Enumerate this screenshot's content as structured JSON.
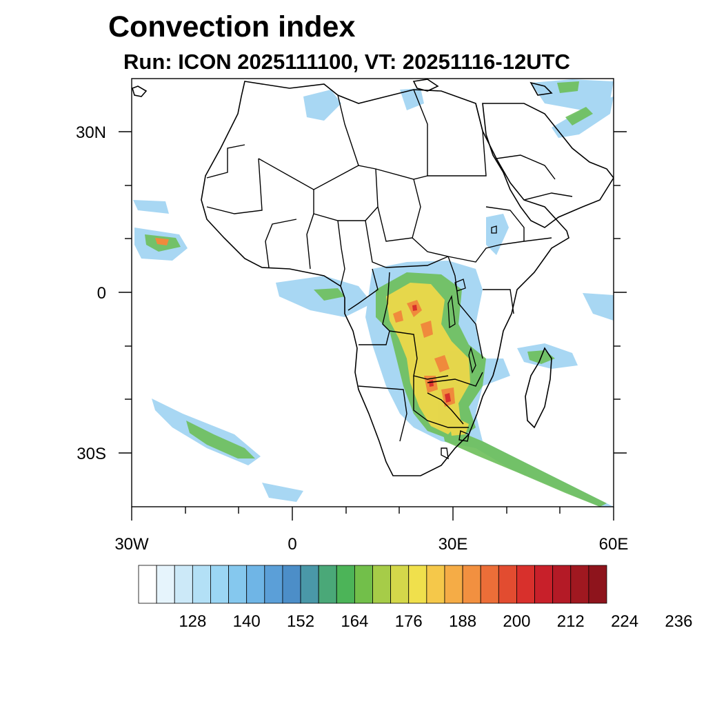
{
  "title": "Convection index",
  "subtitle": "Run: ICON 2025111100,  VT: 20251116-12UTC",
  "map": {
    "projection": "cylindrical equidistant",
    "lon_range": [
      -30,
      60
    ],
    "lat_range": [
      -40,
      40
    ],
    "lat_ticks": [
      {
        "value": 30,
        "label": "30N"
      },
      {
        "value": 0,
        "label": "0"
      },
      {
        "value": -30,
        "label": "30S"
      }
    ],
    "lon_ticks": [
      {
        "value": -30,
        "label": "30W"
      },
      {
        "value": 0,
        "label": "0"
      },
      {
        "value": 30,
        "label": "30E"
      },
      {
        "value": 60,
        "label": "60E"
      }
    ]
  },
  "colorbar": {
    "colors": [
      "#ffffff",
      "#e6f4fc",
      "#cce9f8",
      "#b3e0f6",
      "#9bd6f4",
      "#85c8ee",
      "#6fb5e6",
      "#5b9fd8",
      "#4c8ec8",
      "#4a98a8",
      "#4aa878",
      "#4cb458",
      "#72bf4a",
      "#a6cc48",
      "#d4d84a",
      "#f0e04c",
      "#f5c84a",
      "#f5ac46",
      "#f29040",
      "#ec6e38",
      "#e24c30",
      "#d8302c",
      "#c8202a",
      "#b41a26",
      "#a01820",
      "#8e141c"
    ],
    "tick_labels": [
      "128",
      "140",
      "152",
      "164",
      "176",
      "188",
      "200",
      "212",
      "224",
      "236"
    ]
  }
}
